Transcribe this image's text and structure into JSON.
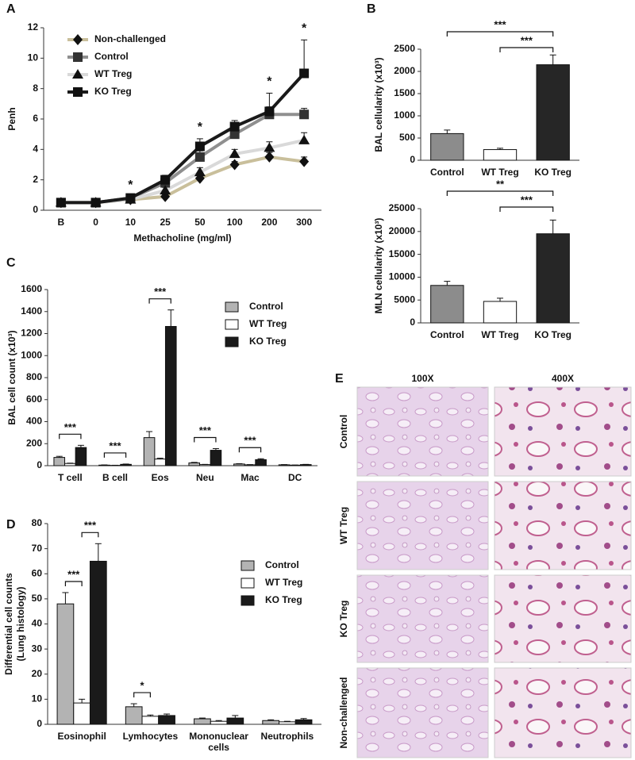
{
  "chart_data": [
    {
      "type": "line",
      "title": "A",
      "ylabel": "Penh",
      "xlabel": "Methacholine (mg/ml)",
      "categories": [
        "B",
        "0",
        "10",
        "25",
        "50",
        "100",
        "200",
        "300"
      ],
      "ylim": [
        0,
        12
      ],
      "yticks": [
        0,
        2,
        4,
        6,
        8,
        10,
        12
      ],
      "series": [
        {
          "name": "Non-challenged",
          "color": "#c9bf9b",
          "marker": "diamond",
          "values": [
            0.5,
            0.5,
            0.7,
            0.9,
            2.1,
            3.0,
            3.5,
            3.2
          ],
          "errors": [
            0.05,
            0.05,
            0.05,
            0.1,
            0.2,
            0.2,
            0.3,
            0.3
          ]
        },
        {
          "name": "Control",
          "color": "#8f8f8f",
          "marker": "square",
          "values": [
            0.5,
            0.5,
            0.8,
            1.8,
            3.5,
            5.0,
            6.3,
            6.3
          ],
          "errors": [
            0.1,
            0.1,
            0.1,
            0.2,
            0.4,
            0.3,
            0.5,
            0.4
          ]
        },
        {
          "name": "WT Treg",
          "color": "#d9d9d9",
          "marker": "triangle",
          "values": [
            0.5,
            0.5,
            0.7,
            1.3,
            2.5,
            3.7,
            4.1,
            4.6
          ],
          "errors": [
            0.05,
            0.05,
            0.1,
            0.2,
            0.3,
            0.3,
            0.4,
            0.5
          ]
        },
        {
          "name": "KO Treg",
          "color": "#1a1a1a",
          "marker": "square",
          "values": [
            0.5,
            0.5,
            0.8,
            2.0,
            4.2,
            5.5,
            6.5,
            9.0
          ],
          "errors": [
            0.1,
            0.1,
            0.1,
            0.3,
            0.5,
            0.4,
            1.2,
            2.2
          ]
        }
      ],
      "annotations": [
        {
          "label": "*",
          "category": "10"
        },
        {
          "label": "*",
          "category": "50"
        },
        {
          "label": "*",
          "category": "200"
        },
        {
          "label": "*",
          "category": "300"
        }
      ]
    },
    {
      "type": "bar",
      "title": "B",
      "ylabel": "BAL cellularity (x10³)",
      "categories": [
        "Control",
        "WT Treg",
        "KO Treg"
      ],
      "values": [
        600,
        240,
        2150
      ],
      "errors": [
        80,
        30,
        220
      ],
      "colors": [
        "#8c8c8c",
        "#ffffff",
        "#262626"
      ],
      "ylim": [
        0,
        2500
      ],
      "yticks": [
        0,
        500,
        1000,
        1500,
        2000,
        2500
      ],
      "brackets": [
        {
          "label": "***",
          "between": [
            "Control",
            "KO Treg"
          ]
        },
        {
          "label": "***",
          "between": [
            "WT Treg",
            "KO Treg"
          ]
        }
      ]
    },
    {
      "type": "bar",
      "ylabel": "MLN cellularity (x10³)",
      "categories": [
        "Control",
        "WT Treg",
        "KO Treg"
      ],
      "values": [
        8200,
        4700,
        19500
      ],
      "errors": [
        900,
        700,
        3000
      ],
      "colors": [
        "#8c8c8c",
        "#ffffff",
        "#262626"
      ],
      "ylim": [
        0,
        25000
      ],
      "yticks": [
        0,
        5000,
        10000,
        15000,
        20000,
        25000
      ],
      "brackets": [
        {
          "label": "**",
          "between": [
            "Control",
            "KO Treg"
          ]
        },
        {
          "label": "***",
          "between": [
            "WT Treg",
            "KO Treg"
          ]
        }
      ]
    },
    {
      "type": "bar",
      "title": "C",
      "ylabel": "BAL cell count (x10³)",
      "categories": [
        "T cell",
        "B cell",
        "Eos",
        "Neu",
        "Mac",
        "DC"
      ],
      "series": [
        {
          "name": "Control",
          "color": "#b3b3b3",
          "values": [
            75,
            5,
            255,
            25,
            15,
            8
          ],
          "errors": [
            10,
            2,
            55,
            5,
            3,
            2
          ]
        },
        {
          "name": "WT Treg",
          "color": "#ffffff",
          "values": [
            20,
            3,
            60,
            10,
            8,
            5
          ],
          "errors": [
            3,
            1,
            8,
            2,
            2,
            1
          ]
        },
        {
          "name": "KO Treg",
          "color": "#1a1a1a",
          "values": [
            165,
            12,
            1265,
            140,
            55,
            10
          ],
          "errors": [
            20,
            3,
            150,
            15,
            8,
            2
          ]
        }
      ],
      "ylim": [
        0,
        1600
      ],
      "yticks": [
        0,
        200,
        400,
        600,
        800,
        1000,
        1200,
        1400,
        1600
      ],
      "brackets": [
        {
          "label": "***",
          "category": "T cell",
          "between": [
            "Control",
            "KO Treg"
          ]
        },
        {
          "label": "***",
          "category": "B cell",
          "between": [
            "Control",
            "KO Treg"
          ]
        },
        {
          "label": "***",
          "category": "Eos",
          "between": [
            "Control",
            "KO Treg"
          ]
        },
        {
          "label": "***",
          "category": "Neu",
          "between": [
            "Control",
            "KO Treg"
          ]
        },
        {
          "label": "***",
          "category": "Mac",
          "between": [
            "Control",
            "KO Treg"
          ]
        }
      ]
    },
    {
      "type": "bar",
      "title": "D",
      "ylabel": [
        "Differential cell counts",
        "(Lung histology)"
      ],
      "categories": [
        "Eosinophil",
        "Lymhocytes",
        "Mononuclear cells",
        "Neutrophils"
      ],
      "series": [
        {
          "name": "Control",
          "color": "#b3b3b3",
          "values": [
            48,
            7,
            2.2,
            1.5
          ],
          "errors": [
            4.5,
            1.2,
            0.3,
            0.3
          ]
        },
        {
          "name": "WT Treg",
          "color": "#ffffff",
          "values": [
            8.5,
            3.2,
            1.2,
            1.0
          ],
          "errors": [
            1.5,
            0.5,
            0.3,
            0.2
          ]
        },
        {
          "name": "KO Treg",
          "color": "#1a1a1a",
          "values": [
            65,
            3.5,
            2.5,
            1.8
          ],
          "errors": [
            7,
            0.6,
            1,
            0.5
          ]
        }
      ],
      "ylim": [
        0,
        80
      ],
      "yticks": [
        0,
        10,
        20,
        30,
        40,
        50,
        60,
        70,
        80
      ],
      "brackets": [
        {
          "label": "***",
          "category": "Eosinophil",
          "between": [
            "Control",
            "WT Treg"
          ]
        },
        {
          "label": "***",
          "category": "Eosinophil",
          "between": [
            "WT Treg",
            "KO Treg"
          ]
        },
        {
          "label": "*",
          "category": "Lymhocytes",
          "between": [
            "Control",
            "WT Treg"
          ]
        }
      ]
    }
  ],
  "histology": {
    "title": "E",
    "columns": [
      "100X",
      "400X"
    ],
    "rows": [
      "Control",
      "WT Treg",
      "KO Treg",
      "Non-challenged"
    ]
  }
}
